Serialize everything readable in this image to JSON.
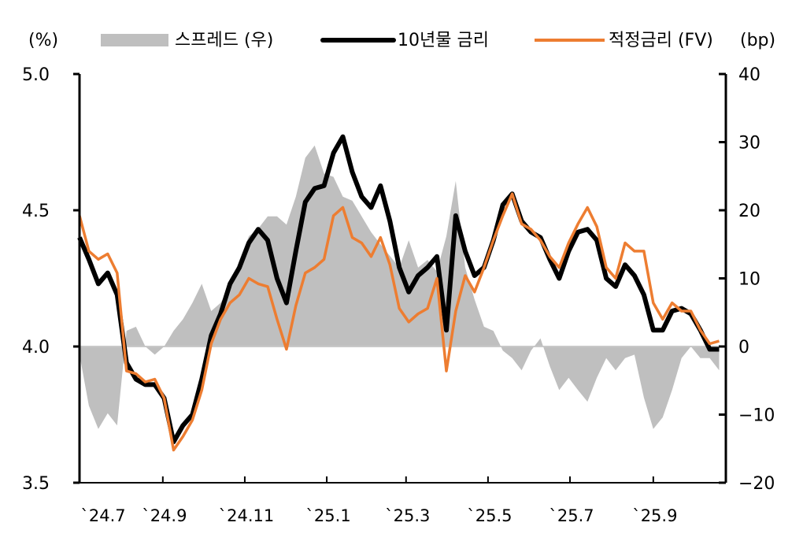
{
  "chart_data": {
    "type": "line",
    "left_axis_label": "(%)",
    "right_axis_label": "(bp)",
    "ylim_left": [
      3.5,
      5.0
    ],
    "ylim_right": [
      -20,
      40
    ],
    "left_ticks": [
      "5.0",
      "4.5",
      "4.0",
      "3.5"
    ],
    "left_tick_values": [
      5.0,
      4.5,
      4.0,
      3.5
    ],
    "right_ticks": [
      "40",
      "30",
      "20",
      "10",
      "0",
      "−10",
      "−20"
    ],
    "right_tick_values": [
      40,
      30,
      20,
      10,
      0,
      -10,
      -20
    ],
    "xlim": [
      "2024-07-01",
      "2025-10-25"
    ],
    "x_ticks": [
      "`24.7",
      "`24.9",
      "`24.11",
      "`25.1",
      "`25.3",
      "`25.5",
      "`25.7",
      "`25.9"
    ],
    "x_tick_dates": [
      "2024-07-01",
      "2024-09-01",
      "2024-11-01",
      "2025-01-01",
      "2025-03-01",
      "2025-05-01",
      "2025-07-01",
      "2025-09-01"
    ],
    "grid": false,
    "legend_position": "top",
    "x": [
      "2024-07-01",
      "2024-07-08",
      "2024-07-15",
      "2024-07-22",
      "2024-07-29",
      "2024-08-05",
      "2024-08-12",
      "2024-08-19",
      "2024-08-26",
      "2024-09-02",
      "2024-09-09",
      "2024-09-16",
      "2024-09-23",
      "2024-09-30",
      "2024-10-07",
      "2024-10-14",
      "2024-10-21",
      "2024-10-28",
      "2024-11-04",
      "2024-11-11",
      "2024-11-18",
      "2024-11-25",
      "2024-12-02",
      "2024-12-09",
      "2024-12-16",
      "2024-12-23",
      "2024-12-30",
      "2025-01-06",
      "2025-01-13",
      "2025-01-20",
      "2025-01-27",
      "2025-02-03",
      "2025-02-10",
      "2025-02-17",
      "2025-02-24",
      "2025-03-03",
      "2025-03-10",
      "2025-03-17",
      "2025-03-24",
      "2025-03-31",
      "2025-04-07",
      "2025-04-14",
      "2025-04-21",
      "2025-04-28",
      "2025-05-05",
      "2025-05-12",
      "2025-05-19",
      "2025-05-26",
      "2025-06-02",
      "2025-06-09",
      "2025-06-16",
      "2025-06-23",
      "2025-06-30",
      "2025-07-07",
      "2025-07-14",
      "2025-07-21",
      "2025-07-28",
      "2025-08-04",
      "2025-08-11",
      "2025-08-18",
      "2025-08-25",
      "2025-09-01",
      "2025-09-08",
      "2025-09-15",
      "2025-09-22",
      "2025-09-29",
      "2025-10-06",
      "2025-10-13",
      "2025-10-20"
    ],
    "series": [
      {
        "name": "스프레드 (우)",
        "axis": "right",
        "kind": "area",
        "color": "#bfbfbf",
        "values": [
          -1.2,
          -8.7,
          -12.1,
          -9.8,
          -11.6,
          2.3,
          2.9,
          0,
          -1.2,
          0,
          2.3,
          4.0,
          6.4,
          9.2,
          5.2,
          6.4,
          8.7,
          12.7,
          16.2,
          17.3,
          19.1,
          19.1,
          17.9,
          22.0,
          27.7,
          29.5,
          25.4,
          24.9,
          22.0,
          21.4,
          19.1,
          16.8,
          15.0,
          13.3,
          11.6,
          15.6,
          11.6,
          12.7,
          11.0,
          16.2,
          24.3,
          11.6,
          6.9,
          2.9,
          2.3,
          -0.6,
          -1.7,
          -3.5,
          -0.6,
          1.2,
          -2.9,
          -6.4,
          -4.6,
          -6.4,
          -8.1,
          -4.6,
          -1.7,
          -3.5,
          -1.7,
          -1.2,
          -7.5,
          -12.1,
          -10.4,
          -6.4,
          -1.7,
          0,
          -1.7,
          -1.7,
          -3.5
        ]
      },
      {
        "name": "10년물 금리",
        "axis": "left",
        "kind": "line",
        "color": "#000000",
        "values": [
          4.4,
          4.32,
          4.23,
          4.27,
          4.19,
          3.94,
          3.88,
          3.86,
          3.86,
          3.81,
          3.65,
          3.71,
          3.75,
          3.88,
          4.04,
          4.12,
          4.23,
          4.29,
          4.38,
          4.43,
          4.39,
          4.25,
          4.16,
          4.35,
          4.53,
          4.58,
          4.59,
          4.71,
          4.77,
          4.64,
          4.55,
          4.51,
          4.59,
          4.46,
          4.29,
          4.2,
          4.26,
          4.29,
          4.33,
          4.06,
          4.48,
          4.35,
          4.26,
          4.29,
          4.39,
          4.52,
          4.56,
          4.46,
          4.42,
          4.4,
          4.32,
          4.25,
          4.35,
          4.42,
          4.43,
          4.39,
          4.25,
          4.22,
          4.3,
          4.26,
          4.19,
          4.06,
          4.06,
          4.13,
          4.14,
          4.12,
          4.06,
          3.99,
          3.99
        ]
      },
      {
        "name": "적정금리 (FV)",
        "axis": "left",
        "kind": "line",
        "color": "#ed7d31",
        "values": [
          4.48,
          4.35,
          4.32,
          4.34,
          4.27,
          3.91,
          3.9,
          3.87,
          3.88,
          3.81,
          3.62,
          3.67,
          3.73,
          3.84,
          4.01,
          4.1,
          4.16,
          4.19,
          4.25,
          4.23,
          4.22,
          4.1,
          3.99,
          4.15,
          4.27,
          4.29,
          4.32,
          4.48,
          4.51,
          4.4,
          4.38,
          4.33,
          4.4,
          4.3,
          4.14,
          4.09,
          4.12,
          4.14,
          4.25,
          3.91,
          4.13,
          4.26,
          4.2,
          4.29,
          4.39,
          4.48,
          4.56,
          4.45,
          4.43,
          4.39,
          4.33,
          4.29,
          4.38,
          4.45,
          4.51,
          4.44,
          4.29,
          4.25,
          4.38,
          4.35,
          4.35,
          4.16,
          4.1,
          4.16,
          4.13,
          4.13,
          4.06,
          4.01,
          4.02
        ]
      }
    ]
  }
}
